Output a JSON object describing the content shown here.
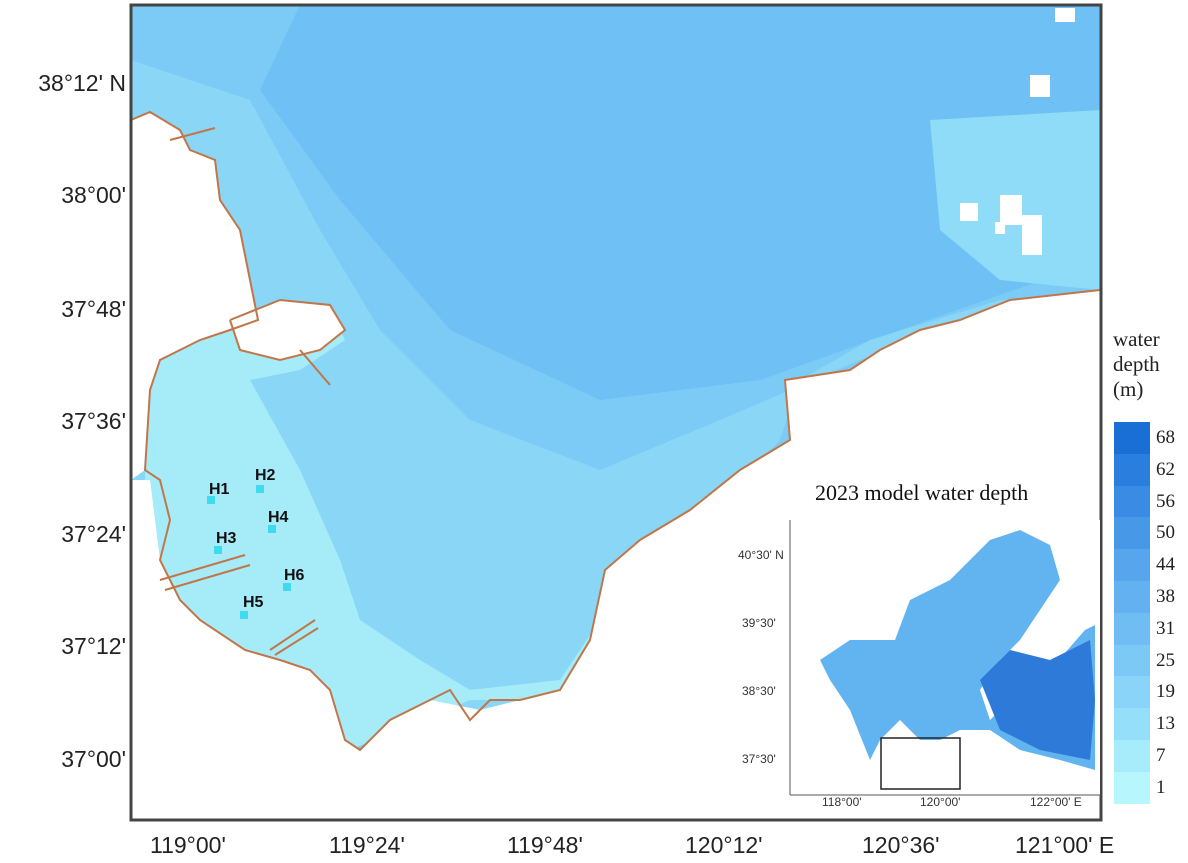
{
  "map": {
    "lat_labels": [
      "38°12' N",
      "38°00'",
      "37°48'",
      "37°36'",
      "37°24'",
      "37°12'",
      "37°00'"
    ],
    "lon_labels": [
      "119°00'",
      "119°24'",
      "119°48'",
      "120°12'",
      "120°36'",
      "121°00' E"
    ],
    "stations": [
      "H1",
      "H2",
      "H3",
      "H4",
      "H5",
      "H6"
    ],
    "colors": {
      "coastline": "#c0764a",
      "shallow": "#a6ecf8",
      "mid": "#84d8f8",
      "deep": "#6ec4f6",
      "station_marker": "#3fd9f0"
    }
  },
  "legend": {
    "title": "water depth (m)",
    "values": [
      "68",
      "62",
      "56",
      "50",
      "44",
      "38",
      "31",
      "25",
      "19",
      "13",
      "7",
      "1"
    ],
    "colors": [
      "#1a6fd6",
      "#2a7ede",
      "#3a8be3",
      "#4898e8",
      "#56a5ed",
      "#63b1f1",
      "#70bdf4",
      "#7cc9f6",
      "#89d4f8",
      "#96dffa",
      "#a6ecfb",
      "#b8f6fd"
    ]
  },
  "inset": {
    "title": "2023 model water depth",
    "lat_labels": [
      "40°30' N",
      "39°30'",
      "38°30'",
      "37°30'"
    ],
    "lon_labels": [
      "118°00'",
      "120°00'",
      "122°00' E"
    ]
  }
}
